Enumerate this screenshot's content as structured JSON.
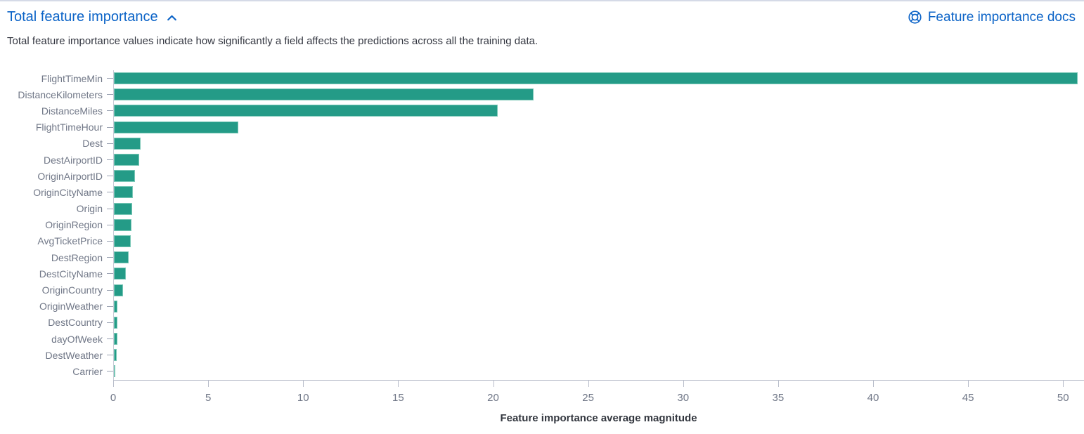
{
  "colors": {
    "accent_blue": "#0b63c7",
    "bar_teal": "#249b87"
  },
  "header": {
    "title": "Total feature importance",
    "docs_link_label": "Feature importance docs"
  },
  "description": "Total feature importance values indicate how significantly a field affects the predictions across all the training data.",
  "chart_data": {
    "type": "bar",
    "orientation": "horizontal",
    "title": "",
    "xlabel": "Feature importance average magnitude",
    "ylabel": "",
    "categories": [
      "FlightTimeMin",
      "DistanceKilometers",
      "DistanceMiles",
      "FlightTimeHour",
      "Dest",
      "DestAirportID",
      "OriginAirportID",
      "OriginCityName",
      "Origin",
      "OriginRegion",
      "AvgTicketPrice",
      "DestRegion",
      "DestCityName",
      "OriginCountry",
      "OriginWeather",
      "DestCountry",
      "dayOfWeek",
      "DestWeather",
      "Carrier"
    ],
    "values": [
      50.75,
      22.1,
      20.2,
      6.55,
      1.4,
      1.34,
      1.12,
      1.01,
      0.95,
      0.91,
      0.89,
      0.79,
      0.62,
      0.48,
      0.2,
      0.18,
      0.17,
      0.15,
      0.07
    ],
    "xticks": [
      0,
      5,
      10,
      15,
      20,
      25,
      30,
      35,
      40,
      45,
      50
    ],
    "xlim": [
      0,
      51.1
    ],
    "grid": false,
    "legend": "none"
  }
}
